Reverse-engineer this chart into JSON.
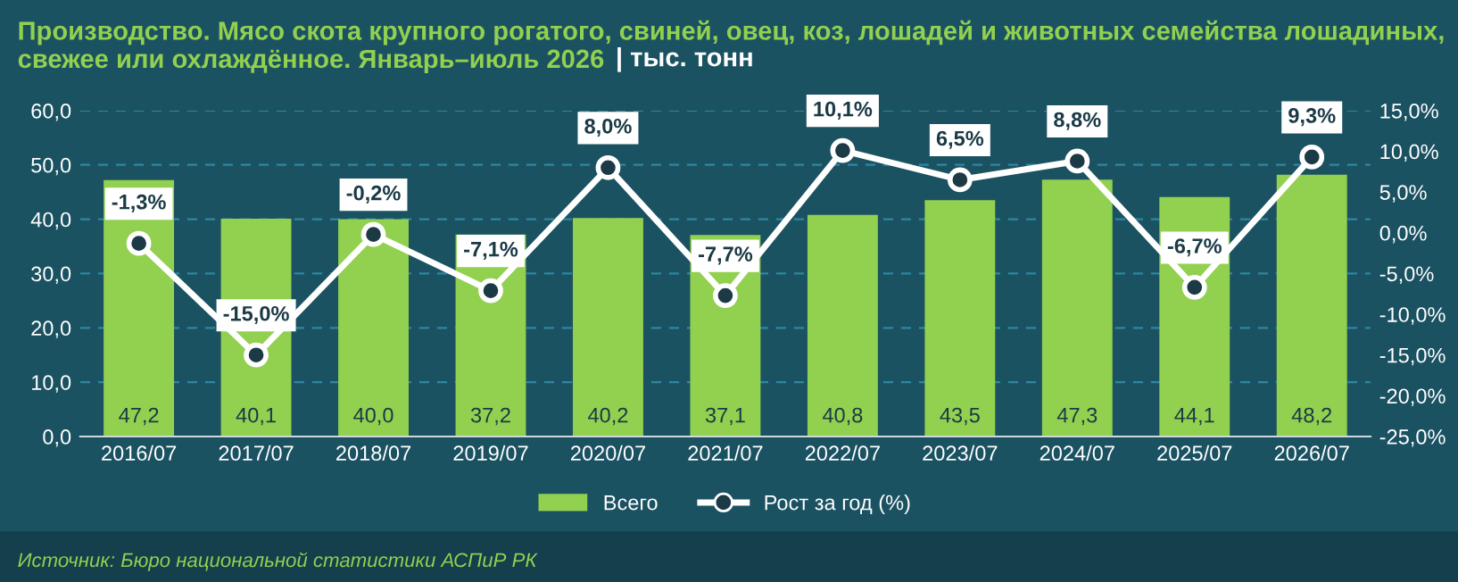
{
  "chart_data": {
    "type": "bar",
    "title": "Производство. Мясо скота крупного рогатого, свиней, овец, коз, лошадей и животных семейства лошадиных, свежее или охлаждённое. Январь–июль 2026",
    "subtitle": "| тыс. тонн",
    "categories": [
      "2016/07",
      "2017/07",
      "2018/07",
      "2019/07",
      "2020/07",
      "2021/07",
      "2022/07",
      "2023/07",
      "2024/07",
      "2025/07",
      "2026/07"
    ],
    "series": [
      {
        "name": "Всего",
        "color": "#92d050",
        "values": [
          47.2,
          40.1,
          40.0,
          37.2,
          40.2,
          37.1,
          40.8,
          43.5,
          47.3,
          44.1,
          48.2
        ],
        "value_labels": [
          "47,2",
          "40,1",
          "40,0",
          "37,2",
          "40,2",
          "37,1",
          "40,8",
          "43,5",
          "47,3",
          "44,1",
          "48,2"
        ]
      },
      {
        "name": "Рост за год (%)",
        "type": "line",
        "axis": "y2",
        "color": "#ffffff",
        "marker": "circle",
        "values": [
          -1.3,
          -15.0,
          -0.2,
          -7.1,
          8.0,
          -7.7,
          10.1,
          6.5,
          8.8,
          -6.7,
          9.3
        ],
        "value_labels": [
          "-1,3%",
          "-15,0%",
          "-0,2%",
          "-7,1%",
          "8,0%",
          "-7,7%",
          "10,1%",
          "6,5%",
          "8,8%",
          "-6,7%",
          "9,3%"
        ]
      }
    ],
    "ylim": [
      0,
      60
    ],
    "yticks": [
      {
        "value": 0,
        "label": "0,0"
      },
      {
        "value": 10,
        "label": "10,0"
      },
      {
        "value": 20,
        "label": "20,0"
      },
      {
        "value": 30,
        "label": "30,0"
      },
      {
        "value": 40,
        "label": "40,0"
      },
      {
        "value": 50,
        "label": "50,0"
      },
      {
        "value": 60,
        "label": "60,0"
      }
    ],
    "y2lim": [
      -25,
      15
    ],
    "y2ticks": [
      {
        "value": -25,
        "label": "-25,0%"
      },
      {
        "value": -20,
        "label": "-20,0%"
      },
      {
        "value": -15,
        "label": "-15,0%"
      },
      {
        "value": -10,
        "label": "-10,0%"
      },
      {
        "value": -5,
        "label": "-5,0%"
      },
      {
        "value": 0,
        "label": "0,0%"
      },
      {
        "value": 5,
        "label": "5,0%"
      },
      {
        "value": 10,
        "label": "10,0%"
      },
      {
        "value": 15,
        "label": "15,0%"
      }
    ],
    "grid": "y",
    "legend": "bottom",
    "annotations": [
      "Источник: Бюро национальной статистики АСПиР РК"
    ]
  }
}
